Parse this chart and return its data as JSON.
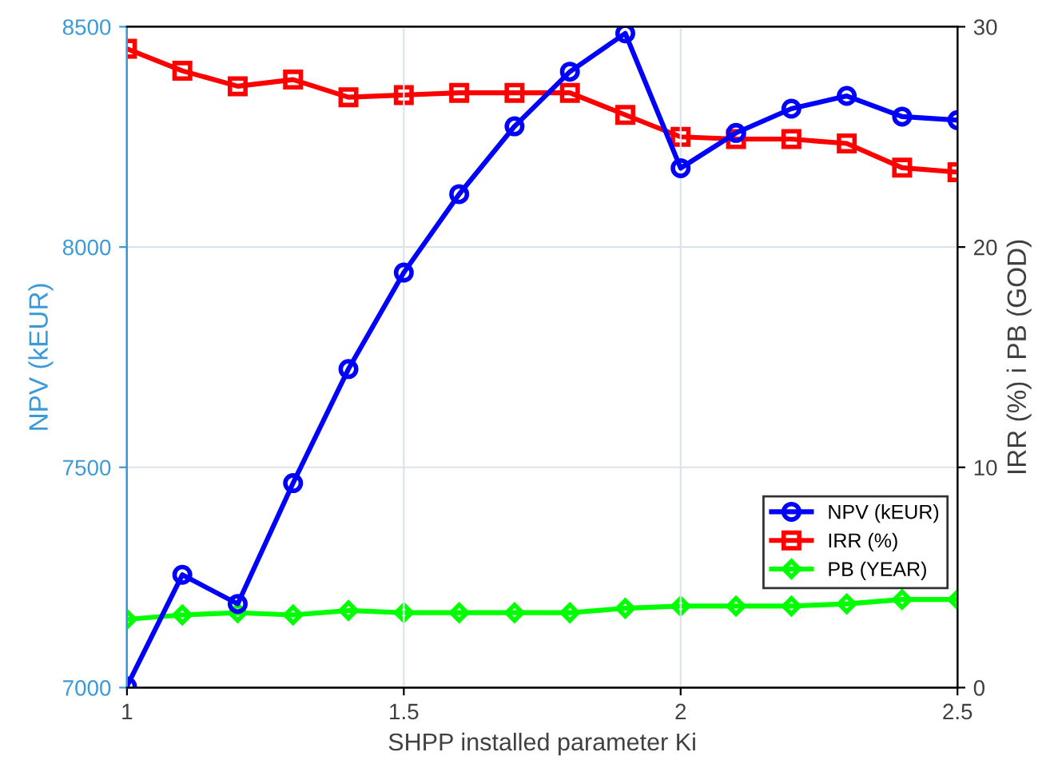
{
  "chart_data": {
    "type": "line",
    "xlabel": "SHPP installed parameter Ki",
    "ylabel": "NPV (kEUR)",
    "y2label": "IRR (%) i PB (GOD)",
    "x": [
      1,
      1.1,
      1.2,
      1.3,
      1.4,
      1.5,
      1.6,
      1.7,
      1.8,
      1.9,
      2,
      2.1,
      2.2,
      2.3,
      2.4,
      2.5
    ],
    "series": [
      {
        "name": "NPV (kEUR)",
        "color": "#0000ff",
        "marker": "circle",
        "values": [
          7003,
          7256,
          7190,
          7464,
          7723,
          7942,
          8120,
          8274,
          8398,
          8485,
          8179,
          8259,
          8314,
          8343,
          8296,
          8288
        ]
      },
      {
        "name": "IRR (%)",
        "color": "#ff0000",
        "marker": "square",
        "axis": "y2",
        "values": [
          29.0,
          28.0,
          27.3,
          27.6,
          26.8,
          26.9,
          27.0,
          27.0,
          27.0,
          26.0,
          25.0,
          24.9,
          24.9,
          24.7,
          23.6,
          23.4
        ]
      },
      {
        "name": "PB (YEAR)",
        "color": "#00ff00",
        "marker": "diamond",
        "axis": "y2",
        "values": [
          3.1,
          3.3,
          3.4,
          3.3,
          3.5,
          3.4,
          3.4,
          3.4,
          3.4,
          3.6,
          3.7,
          3.7,
          3.7,
          3.8,
          4.0,
          4.0
        ]
      }
    ],
    "xlim": [
      1,
      2.5
    ],
    "xticks": [
      1,
      1.5,
      2,
      2.5
    ],
    "ylim": [
      7000,
      8500
    ],
    "yticks": [
      7000,
      7500,
      8000,
      8500
    ],
    "y2lim": [
      0,
      30
    ],
    "y2ticks": [
      0,
      10,
      20,
      30
    ],
    "grid": true,
    "legend": "right",
    "line_style": "solid"
  }
}
